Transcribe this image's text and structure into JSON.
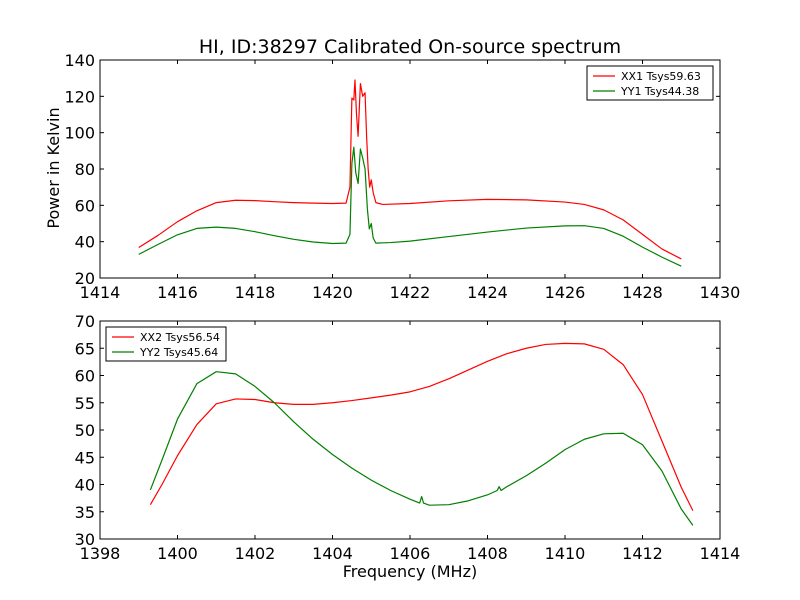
{
  "figure": {
    "title": "HI, ID:38297 Calibrated On-source spectrum",
    "ylabel_top": "Power in Kelvin",
    "xlabel_bottom": "Frequency (MHz)"
  },
  "chart_data": [
    {
      "type": "line",
      "title": "HI, ID:38297 Calibrated On-source spectrum",
      "xlabel": "",
      "ylabel": "Power in Kelvin",
      "xlim": [
        1414,
        1430
      ],
      "ylim": [
        20,
        140
      ],
      "xticks": [
        1414,
        1416,
        1418,
        1420,
        1422,
        1424,
        1426,
        1428,
        1430
      ],
      "yticks": [
        20,
        40,
        60,
        80,
        100,
        120,
        140
      ],
      "grid": false,
      "legend": "top-right",
      "series": [
        {
          "name": "XX1 Tsys59.63",
          "color": "#ff0000",
          "points": [
            [
              1415.0,
              36.8
            ],
            [
              1415.5,
              43.5
            ],
            [
              1416.0,
              51.0
            ],
            [
              1416.5,
              57.0
            ],
            [
              1417.0,
              61.5
            ],
            [
              1417.5,
              62.8
            ],
            [
              1418.0,
              62.6
            ],
            [
              1418.5,
              62.0
            ],
            [
              1419.0,
              61.5
            ],
            [
              1419.5,
              61.2
            ],
            [
              1420.0,
              61.0
            ],
            [
              1420.35,
              61.2
            ],
            [
              1420.45,
              70.0
            ],
            [
              1420.5,
              119.0
            ],
            [
              1420.55,
              118.0
            ],
            [
              1420.58,
              129.0
            ],
            [
              1420.62,
              110.0
            ],
            [
              1420.66,
              98.0
            ],
            [
              1420.72,
              127.0
            ],
            [
              1420.78,
              120.0
            ],
            [
              1420.84,
              122.0
            ],
            [
              1420.88,
              98.0
            ],
            [
              1420.92,
              80.0
            ],
            [
              1420.96,
              70.0
            ],
            [
              1421.0,
              74.0
            ],
            [
              1421.05,
              67.0
            ],
            [
              1421.12,
              61.5
            ],
            [
              1421.3,
              60.5
            ],
            [
              1422.0,
              61.0
            ],
            [
              1423.0,
              62.5
            ],
            [
              1424.0,
              63.3
            ],
            [
              1425.0,
              63.0
            ],
            [
              1426.0,
              61.8
            ],
            [
              1426.5,
              60.5
            ],
            [
              1427.0,
              57.5
            ],
            [
              1427.5,
              52.0
            ],
            [
              1428.0,
              44.0
            ],
            [
              1428.5,
              36.0
            ],
            [
              1429.0,
              30.5
            ]
          ]
        },
        {
          "name": "YY1 Tsys44.38",
          "color": "#008000",
          "points": [
            [
              1415.0,
              33.0
            ],
            [
              1415.5,
              38.5
            ],
            [
              1416.0,
              43.8
            ],
            [
              1416.5,
              47.3
            ],
            [
              1417.0,
              48.0
            ],
            [
              1417.5,
              47.3
            ],
            [
              1418.0,
              45.5
            ],
            [
              1418.5,
              43.3
            ],
            [
              1419.0,
              41.3
            ],
            [
              1419.5,
              39.8
            ],
            [
              1420.0,
              39.0
            ],
            [
              1420.35,
              39.2
            ],
            [
              1420.45,
              44.0
            ],
            [
              1420.5,
              83.0
            ],
            [
              1420.55,
              92.0
            ],
            [
              1420.6,
              78.0
            ],
            [
              1420.66,
              72.0
            ],
            [
              1420.72,
              91.0
            ],
            [
              1420.78,
              86.0
            ],
            [
              1420.84,
              80.0
            ],
            [
              1420.9,
              58.0
            ],
            [
              1420.95,
              47.0
            ],
            [
              1421.0,
              50.0
            ],
            [
              1421.05,
              42.0
            ],
            [
              1421.12,
              39.2
            ],
            [
              1421.5,
              39.5
            ],
            [
              1422.0,
              40.3
            ],
            [
              1423.0,
              42.8
            ],
            [
              1424.0,
              45.3
            ],
            [
              1425.0,
              47.5
            ],
            [
              1426.0,
              48.7
            ],
            [
              1426.5,
              48.8
            ],
            [
              1427.0,
              47.3
            ],
            [
              1427.5,
              43.0
            ],
            [
              1428.0,
              37.0
            ],
            [
              1428.5,
              31.5
            ],
            [
              1429.0,
              26.5
            ]
          ]
        }
      ]
    },
    {
      "type": "line",
      "title": "",
      "xlabel": "Frequency (MHz)",
      "ylabel": "",
      "xlim": [
        1398,
        1414
      ],
      "ylim": [
        30,
        70
      ],
      "xticks": [
        1398,
        1400,
        1402,
        1404,
        1406,
        1408,
        1410,
        1412,
        1414
      ],
      "yticks": [
        30,
        35,
        40,
        45,
        50,
        55,
        60,
        65,
        70
      ],
      "grid": false,
      "legend": "top-left",
      "series": [
        {
          "name": "XX2 Tsys56.54",
          "color": "#ff0000",
          "points": [
            [
              1399.3,
              36.3
            ],
            [
              1399.6,
              40.0
            ],
            [
              1400.0,
              45.3
            ],
            [
              1400.5,
              51.0
            ],
            [
              1401.0,
              54.8
            ],
            [
              1401.5,
              55.7
            ],
            [
              1402.0,
              55.6
            ],
            [
              1402.5,
              55.0
            ],
            [
              1403.0,
              54.7
            ],
            [
              1403.5,
              54.7
            ],
            [
              1404.0,
              55.0
            ],
            [
              1404.5,
              55.4
            ],
            [
              1405.0,
              55.9
            ],
            [
              1405.5,
              56.4
            ],
            [
              1406.0,
              57.0
            ],
            [
              1406.5,
              58.0
            ],
            [
              1407.0,
              59.4
            ],
            [
              1407.5,
              61.0
            ],
            [
              1408.0,
              62.6
            ],
            [
              1408.5,
              64.0
            ],
            [
              1409.0,
              65.0
            ],
            [
              1409.5,
              65.7
            ],
            [
              1410.0,
              65.9
            ],
            [
              1410.5,
              65.8
            ],
            [
              1411.0,
              64.8
            ],
            [
              1411.5,
              62.0
            ],
            [
              1412.0,
              56.5
            ],
            [
              1412.5,
              48.0
            ],
            [
              1413.0,
              39.5
            ],
            [
              1413.3,
              35.2
            ]
          ]
        },
        {
          "name": "YY2 Tsys45.64",
          "color": "#008000",
          "points": [
            [
              1399.3,
              39.0
            ],
            [
              1399.6,
              44.5
            ],
            [
              1400.0,
              52.0
            ],
            [
              1400.5,
              58.5
            ],
            [
              1401.0,
              60.7
            ],
            [
              1401.5,
              60.3
            ],
            [
              1402.0,
              58.0
            ],
            [
              1402.5,
              55.0
            ],
            [
              1403.0,
              51.5
            ],
            [
              1403.5,
              48.3
            ],
            [
              1404.0,
              45.5
            ],
            [
              1404.5,
              43.0
            ],
            [
              1405.0,
              40.8
            ],
            [
              1405.5,
              38.9
            ],
            [
              1406.0,
              37.3
            ],
            [
              1406.25,
              36.6
            ],
            [
              1406.3,
              37.8
            ],
            [
              1406.35,
              36.6
            ],
            [
              1406.5,
              36.2
            ],
            [
              1407.0,
              36.3
            ],
            [
              1407.5,
              37.0
            ],
            [
              1408.0,
              38.1
            ],
            [
              1408.25,
              38.9
            ],
            [
              1408.3,
              39.6
            ],
            [
              1408.35,
              38.9
            ],
            [
              1408.5,
              39.6
            ],
            [
              1409.0,
              41.6
            ],
            [
              1409.5,
              43.9
            ],
            [
              1410.0,
              46.4
            ],
            [
              1410.5,
              48.3
            ],
            [
              1411.0,
              49.3
            ],
            [
              1411.5,
              49.4
            ],
            [
              1412.0,
              47.3
            ],
            [
              1412.5,
              42.5
            ],
            [
              1413.0,
              35.5
            ],
            [
              1413.3,
              32.5
            ]
          ]
        }
      ]
    }
  ]
}
